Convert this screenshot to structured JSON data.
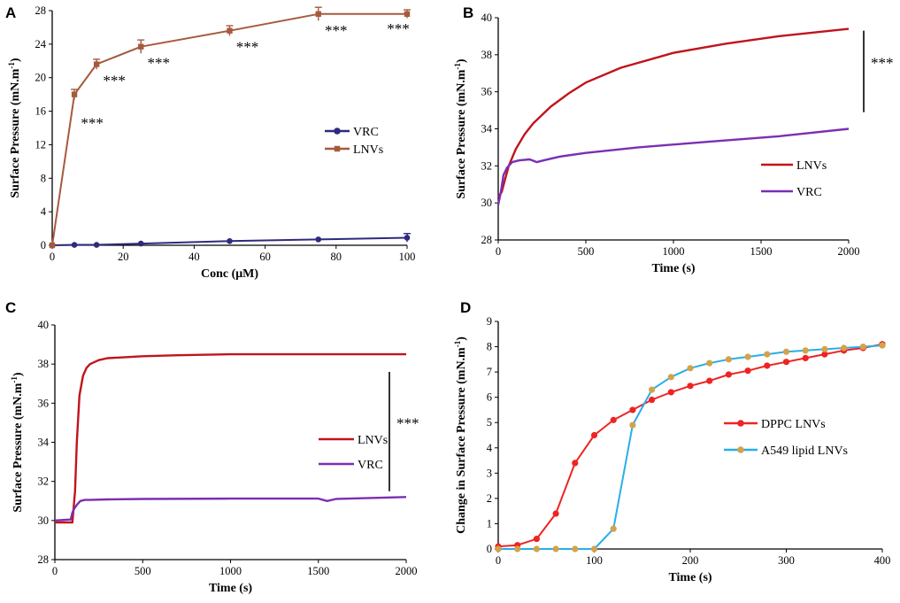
{
  "colors": {
    "lnv_brown": "#a65a3c",
    "vrc_navy": "#2e2a7d",
    "lnv_red": "#c0141c",
    "vrc_purple": "#7a2fb3",
    "dppc_red": "#ee2424",
    "a549_blue": "#29aee8",
    "a549_marker": "#d4a24a"
  },
  "chart_data": [
    {
      "panel": "A",
      "type": "line",
      "xlabel": "Conc (μM)",
      "ylabel": "Surface Pressure (mN.m⁻¹)",
      "xlim": [
        0,
        100
      ],
      "ylim": [
        0,
        28
      ],
      "xticks": [
        0,
        20,
        40,
        60,
        80,
        100
      ],
      "yticks": [
        0,
        4,
        8,
        12,
        16,
        20,
        24,
        28
      ],
      "legend_position": "center-right",
      "series": [
        {
          "name": "VRC",
          "color": "#2e2a7d",
          "marker": "circle",
          "x": [
            0,
            6.25,
            12.5,
            25,
            50,
            75,
            100
          ],
          "y": [
            0,
            0.05,
            0.05,
            0.2,
            0.5,
            0.7,
            0.9
          ],
          "err": [
            0,
            0,
            0,
            0,
            0,
            0,
            0.5
          ]
        },
        {
          "name": "LNVs",
          "color": "#a65a3c",
          "marker": "square",
          "x": [
            0,
            6.25,
            12.5,
            25,
            50,
            75,
            100
          ],
          "y": [
            0,
            18,
            21.6,
            23.7,
            25.6,
            27.6,
            27.6
          ],
          "err": [
            0,
            0.6,
            0.6,
            0.8,
            0.6,
            0.8,
            0.5
          ]
        }
      ],
      "annotations": [
        {
          "x": 6.25,
          "y": 18,
          "text": "***"
        },
        {
          "x": 12.5,
          "y": 21.6,
          "text": "***"
        },
        {
          "x": 25,
          "y": 23.7,
          "text": "***"
        },
        {
          "x": 50,
          "y": 25.6,
          "text": "***"
        },
        {
          "x": 75,
          "y": 27.6,
          "text": "***"
        },
        {
          "x": 100,
          "y": 27.6,
          "text": "***"
        }
      ]
    },
    {
      "panel": "B",
      "type": "line",
      "xlabel": "Time (s)",
      "ylabel": "Surface Pressure (mN.m⁻¹)",
      "xlim": [
        0,
        2000
      ],
      "ylim": [
        28,
        40
      ],
      "xticks": [
        0,
        500,
        1000,
        1500,
        2000
      ],
      "yticks": [
        28,
        30,
        32,
        34,
        36,
        38,
        40
      ],
      "legend_position": "right",
      "significance": {
        "text": "***",
        "range": [
          34.9,
          39.3
        ]
      },
      "series": [
        {
          "name": "LNVs",
          "color": "#c0141c",
          "x": [
            0,
            20,
            40,
            60,
            100,
            150,
            200,
            300,
            400,
            500,
            700,
            1000,
            1300,
            1600,
            2000
          ],
          "y": [
            30.3,
            30.6,
            31.3,
            32.0,
            32.9,
            33.7,
            34.3,
            35.2,
            35.9,
            36.5,
            37.3,
            38.1,
            38.6,
            39.0,
            39.4
          ]
        },
        {
          "name": "VRC",
          "color": "#7a2fb3",
          "x": [
            0,
            15,
            30,
            50,
            80,
            120,
            180,
            220,
            260,
            350,
            500,
            800,
            1200,
            1600,
            2000
          ],
          "y": [
            29.9,
            30.6,
            31.5,
            31.9,
            32.2,
            32.3,
            32.35,
            32.2,
            32.3,
            32.5,
            32.7,
            33.0,
            33.3,
            33.6,
            34.0
          ]
        }
      ]
    },
    {
      "panel": "C",
      "type": "line",
      "xlabel": "Time (s)",
      "ylabel": "Surface Pressure (mN.m⁻¹)",
      "xlim": [
        0,
        2000
      ],
      "ylim": [
        28,
        40
      ],
      "xticks": [
        0,
        500,
        1000,
        1500,
        2000
      ],
      "yticks": [
        28,
        30,
        32,
        34,
        36,
        38,
        40
      ],
      "legend_position": "right",
      "significance": {
        "text": "***",
        "range": [
          31.5,
          37.6
        ]
      },
      "series": [
        {
          "name": "LNVs",
          "color": "#c0141c",
          "x": [
            0,
            100,
            115,
            125,
            140,
            160,
            180,
            200,
            250,
            300,
            400,
            500,
            700,
            1000,
            1500,
            2000
          ],
          "y": [
            29.9,
            29.9,
            31.5,
            34.0,
            36.4,
            37.4,
            37.8,
            38.0,
            38.2,
            38.3,
            38.35,
            38.4,
            38.45,
            38.5,
            38.5,
            38.5
          ]
        },
        {
          "name": "VRC",
          "color": "#7a2fb3",
          "x": [
            0,
            90,
            100,
            110,
            125,
            145,
            170,
            200,
            300,
            500,
            1000,
            1500,
            1550,
            1600,
            2000
          ],
          "y": [
            30.0,
            30.05,
            30.4,
            30.6,
            30.8,
            31.0,
            31.05,
            31.05,
            31.08,
            31.1,
            31.12,
            31.12,
            31.0,
            31.1,
            31.2
          ]
        }
      ]
    },
    {
      "panel": "D",
      "type": "line",
      "xlabel": "Time (s)",
      "ylabel": "Change in Surface Pressure (mN.m⁻¹)",
      "xlim": [
        0,
        400
      ],
      "ylim": [
        0,
        9
      ],
      "xticks": [
        0,
        100,
        200,
        300,
        400
      ],
      "yticks": [
        0,
        1,
        2,
        3,
        4,
        5,
        6,
        7,
        8,
        9
      ],
      "legend_position": "right",
      "series": [
        {
          "name": "DPPC LNVs",
          "color": "#ee2424",
          "marker": "circle",
          "x": [
            0,
            20,
            40,
            60,
            80,
            100,
            120,
            140,
            160,
            180,
            200,
            220,
            240,
            260,
            280,
            300,
            320,
            340,
            360,
            380,
            400
          ],
          "y": [
            0.1,
            0.15,
            0.4,
            1.4,
            3.4,
            4.5,
            5.1,
            5.5,
            5.9,
            6.2,
            6.45,
            6.65,
            6.9,
            7.05,
            7.25,
            7.4,
            7.55,
            7.7,
            7.85,
            7.95,
            8.1
          ]
        },
        {
          "name": "A549 lipid LNVs",
          "color": "#29aee8",
          "marker": "circle",
          "x": [
            0,
            20,
            40,
            60,
            80,
            100,
            120,
            140,
            160,
            180,
            200,
            220,
            240,
            260,
            280,
            300,
            320,
            340,
            360,
            380,
            400
          ],
          "y": [
            0,
            0,
            0,
            0,
            0,
            0,
            0.8,
            4.9,
            6.3,
            6.8,
            7.15,
            7.35,
            7.5,
            7.6,
            7.7,
            7.8,
            7.85,
            7.9,
            7.95,
            8.0,
            8.05
          ]
        }
      ]
    }
  ]
}
